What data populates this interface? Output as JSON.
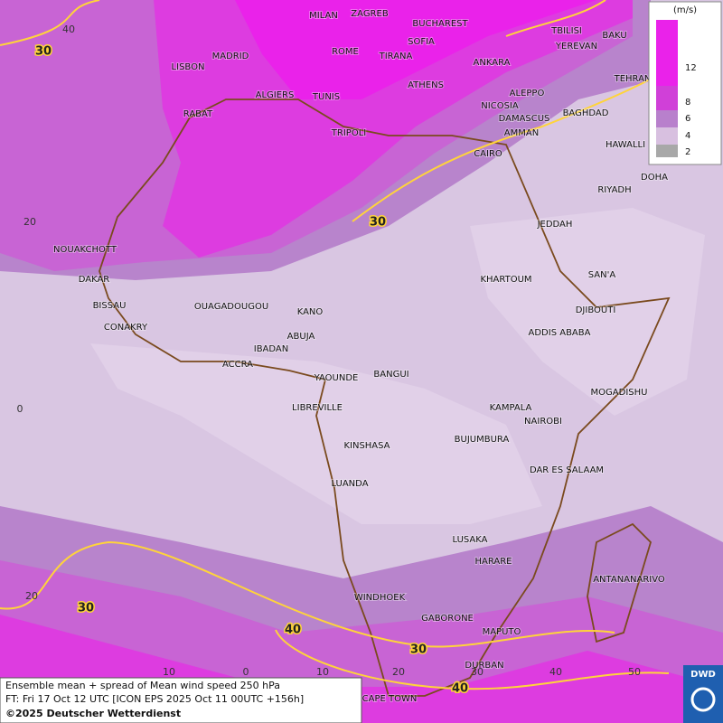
{
  "map": {
    "cities": [
      "MILAN",
      "ZAGREB",
      "BUCHAREST",
      "TBILISI",
      "BAKU",
      "MADRID",
      "ROME",
      "SOFIA",
      "YEREVAN",
      "LISBON",
      "TIRANA",
      "ANKARA",
      "TEHRAN",
      "ALGIERS",
      "TUNIS",
      "ATHENS",
      "ALEPPO",
      "RABAT",
      "NICOSIA",
      "BAGHDAD",
      "TRIPOLI",
      "DAMASCUS",
      "AMMAN",
      "HAWALLI",
      "CAIRO",
      "DOHA",
      "RIYADH",
      "JEDDAH",
      "NOUAKCHOTT",
      "SAN'A",
      "DAKAR",
      "KHARTOUM",
      "BISSAU",
      "OUAGADOUGOU",
      "KANO",
      "DJIBOUTI",
      "CONAKRY",
      "ABUJA",
      "ADDIS ABABA",
      "IBADAN",
      "ACCRA",
      "YAOUNDE",
      "BANGUI",
      "MOGADISHU",
      "LIBREVILLE",
      "KAMPALA",
      "NAIROBI",
      "KINSHASA",
      "BUJUMBURA",
      "DAR ES SALAAM",
      "LUANDA",
      "LUSAKA",
      "HARARE",
      "ANTANANARIVO",
      "WINDHOEK",
      "GABORONE",
      "MAPUTO",
      "DURBAN",
      "CAPE TOWN"
    ],
    "contour_labels": [
      30,
      30,
      30,
      30,
      40,
      40
    ],
    "lat_labels": [
      40,
      20,
      0,
      20
    ],
    "lon_labels": [
      10,
      0,
      10,
      20,
      30,
      40,
      50
    ]
  },
  "legend": {
    "unit": "(m/s)",
    "levels": [
      12,
      8,
      6,
      4,
      2
    ]
  },
  "footer": {
    "line1": "Ensemble mean + spread of Mean wind speed 250 hPa",
    "line2": "FT: Fri 17 Oct 12 UTC [ICON EPS 2025 Oct 11 00UTC +156h]",
    "line3": "©2025 Deutscher Wetterdienst"
  },
  "logo": "DWD"
}
